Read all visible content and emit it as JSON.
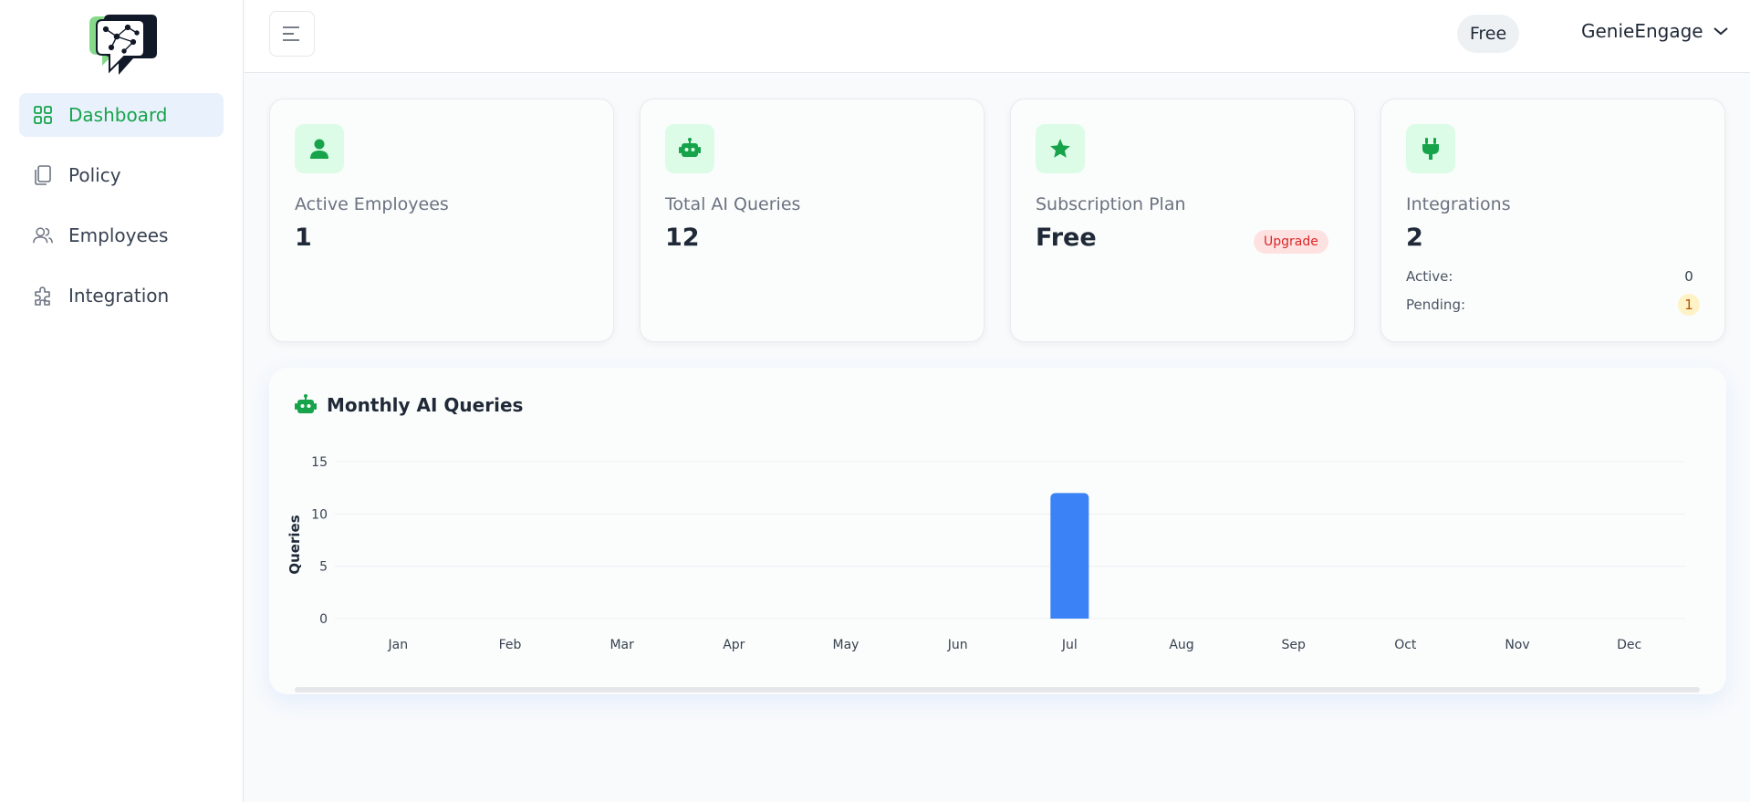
{
  "sidebar": {
    "items": [
      {
        "label": "Dashboard",
        "icon": "grid-icon",
        "active": true
      },
      {
        "label": "Policy",
        "icon": "copy-icon",
        "active": false
      },
      {
        "label": "Employees",
        "icon": "users-icon",
        "active": false
      },
      {
        "label": "Integration",
        "icon": "puzzle-icon",
        "active": false
      }
    ]
  },
  "header": {
    "plan_badge": "Free",
    "account_name": "GenieEngage"
  },
  "cards": [
    {
      "label": "Active Employees",
      "value": "1",
      "icon": "user-icon"
    },
    {
      "label": "Total AI Queries",
      "value": "12",
      "icon": "robot-icon"
    },
    {
      "label": "Subscription Plan",
      "value": "Free",
      "icon": "star-icon",
      "action": "Upgrade"
    },
    {
      "label": "Integrations",
      "value": "2",
      "icon": "plug-icon",
      "details": [
        {
          "label": "Active:",
          "value": "0"
        },
        {
          "label": "Pending:",
          "value": "1"
        }
      ]
    }
  ],
  "chart_section": {
    "title": "Monthly AI Queries",
    "icon": "robot-icon"
  },
  "chart_data": {
    "type": "bar",
    "title": "Monthly AI Queries",
    "xlabel": "",
    "ylabel": "Queries",
    "categories": [
      "Jan",
      "Feb",
      "Mar",
      "Apr",
      "May",
      "Jun",
      "Jul",
      "Aug",
      "Sep",
      "Oct",
      "Nov",
      "Dec"
    ],
    "values": [
      0,
      0,
      0,
      0,
      0,
      0,
      12,
      0,
      0,
      0,
      0,
      0
    ],
    "ylim": [
      0,
      15
    ],
    "yticks": [
      0,
      5,
      10,
      15
    ],
    "grid": true,
    "bar_color": "#3b82f6"
  },
  "colors": {
    "accent": "#16a34a",
    "accent_bg": "#dcfce7",
    "active_nav_bg": "#e9f1fd",
    "upgrade": "#dc2626"
  }
}
